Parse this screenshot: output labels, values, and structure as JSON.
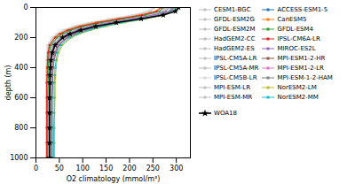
{
  "chart_data": {
    "type": "line",
    "xlabel": "O2 climatology (mmol/m³)",
    "ylabel": "depth (m)",
    "xlim": [
      0,
      330
    ],
    "ylim": [
      1000,
      0
    ],
    "xticks": [
      0,
      50,
      100,
      150,
      200,
      250,
      300
    ],
    "yticks": [
      0,
      200,
      400,
      600,
      800,
      1000
    ],
    "grid": false,
    "legend": "right",
    "y": [
      0,
      25,
      50,
      75,
      100,
      125,
      150,
      175,
      200,
      250,
      300,
      350,
      400,
      450,
      500,
      600,
      700,
      800,
      900,
      1000
    ],
    "series": [
      {
        "name": "CESM1-BGC",
        "color": "#c0c0c0",
        "marker": "circle",
        "values": [
          270,
          265,
          245,
          205,
          155,
          110,
          80,
          60,
          47,
          33,
          29,
          27,
          26,
          26,
          25,
          25,
          25,
          25,
          25,
          25
        ]
      },
      {
        "name": "GFDL-ESM2G",
        "color": "#c0c0c0",
        "marker": "circle",
        "values": [
          275,
          268,
          240,
          195,
          148,
          108,
          80,
          60,
          48,
          34,
          30,
          28,
          27,
          27,
          26,
          26,
          26,
          26,
          26,
          26
        ]
      },
      {
        "name": "GFDL-ESM2M",
        "color": "#c0c0c0",
        "marker": "circle",
        "values": [
          273,
          265,
          235,
          188,
          140,
          100,
          74,
          56,
          44,
          31,
          28,
          27,
          26,
          26,
          25,
          25,
          25,
          25,
          25,
          25
        ]
      },
      {
        "name": "HadGEM2-CC",
        "color": "#c0c0c0",
        "marker": "circle",
        "values": [
          278,
          272,
          248,
          205,
          158,
          117,
          87,
          66,
          52,
          37,
          32,
          30,
          29,
          28,
          28,
          27,
          27,
          27,
          27,
          27
        ]
      },
      {
        "name": "HadGEM2-ES",
        "color": "#c0c0c0",
        "marker": "circle",
        "values": [
          276,
          270,
          244,
          200,
          152,
          112,
          83,
          63,
          50,
          35,
          31,
          29,
          28,
          27,
          27,
          27,
          26,
          26,
          26,
          26
        ]
      },
      {
        "name": "IPSL-CM5A-LR",
        "color": "#c0c0c0",
        "marker": "circle",
        "values": [
          255,
          245,
          215,
          168,
          122,
          87,
          63,
          48,
          38,
          27,
          25,
          24,
          23,
          23,
          23,
          23,
          22,
          22,
          22,
          22
        ]
      },
      {
        "name": "IPSL-CM5A-MR",
        "color": "#c0c0c0",
        "marker": "circle",
        "values": [
          252,
          242,
          210,
          163,
          118,
          84,
          61,
          46,
          37,
          26,
          24,
          23,
          22,
          22,
          22,
          22,
          22,
          22,
          22,
          22
        ]
      },
      {
        "name": "IPSL-CM5B-LR",
        "color": "#d8d8d8",
        "marker": "circle",
        "values": [
          248,
          238,
          205,
          157,
          112,
          79,
          57,
          43,
          34,
          24,
          23,
          22,
          22,
          22,
          21,
          21,
          21,
          21,
          21,
          21
        ]
      },
      {
        "name": "MPI-ESM-LR",
        "color": "#c0c0c0",
        "marker": "circle",
        "values": [
          282,
          277,
          255,
          215,
          168,
          127,
          97,
          75,
          60,
          44,
          37,
          34,
          33,
          32,
          31,
          31,
          31,
          30,
          30,
          30
        ]
      },
      {
        "name": "MPI-ESM-MR",
        "color": "#c0c0c0",
        "marker": "circle",
        "values": [
          280,
          275,
          252,
          210,
          163,
          122,
          93,
          71,
          57,
          41,
          35,
          32,
          31,
          30,
          30,
          30,
          29,
          29,
          29,
          29
        ]
      },
      {
        "name": "ACCESS-ESM1-5",
        "color": "#1f77b4",
        "marker": "square",
        "values": [
          290,
          285,
          262,
          220,
          172,
          132,
          102,
          80,
          64,
          47,
          40,
          37,
          35,
          34,
          34,
          33,
          33,
          33,
          33,
          33
        ]
      },
      {
        "name": "CanESM5",
        "color": "#ff7f0e",
        "marker": "square",
        "values": [
          265,
          255,
          222,
          174,
          127,
          91,
          66,
          50,
          40,
          29,
          26,
          25,
          24,
          24,
          23,
          23,
          23,
          23,
          23,
          23
        ]
      },
      {
        "name": "GFDL-ESM4",
        "color": "#2ca02c",
        "marker": "square",
        "values": [
          272,
          264,
          234,
          187,
          140,
          101,
          75,
          57,
          45,
          32,
          28,
          27,
          26,
          26,
          26,
          25,
          25,
          25,
          25,
          25
        ]
      },
      {
        "name": "IPSL-CM6A-LR",
        "color": "#d62728",
        "marker": "square",
        "values": [
          268,
          258,
          227,
          179,
          132,
          95,
          69,
          52,
          41,
          29,
          26,
          25,
          24,
          24,
          23,
          23,
          23,
          23,
          23,
          23
        ]
      },
      {
        "name": "MIROC-ES2L",
        "color": "#9467bd",
        "marker": "square",
        "values": [
          285,
          278,
          252,
          207,
          158,
          118,
          88,
          67,
          53,
          38,
          33,
          31,
          30,
          29,
          29,
          28,
          28,
          28,
          28,
          28
        ]
      },
      {
        "name": "MPI-ESM1-2-HR",
        "color": "#8c564b",
        "marker": "square",
        "values": [
          295,
          290,
          268,
          228,
          180,
          140,
          108,
          85,
          68,
          50,
          43,
          39,
          37,
          36,
          36,
          35,
          35,
          35,
          35,
          35
        ]
      },
      {
        "name": "MPI-ESM1-2-LR",
        "color": "#e377c2",
        "marker": "square",
        "values": [
          292,
          287,
          264,
          223,
          175,
          135,
          104,
          81,
          65,
          47,
          40,
          37,
          35,
          35,
          34,
          34,
          34,
          33,
          33,
          33
        ]
      },
      {
        "name": "MPI-ESM-1-2-HAM",
        "color": "#7f7f7f",
        "marker": "square",
        "values": [
          293,
          288,
          266,
          225,
          178,
          137,
          106,
          83,
          67,
          49,
          41,
          38,
          36,
          35,
          35,
          34,
          34,
          34,
          34,
          34
        ]
      },
      {
        "name": "NorESM2-LM",
        "color": "#bcbd22",
        "marker": "square",
        "values": [
          300,
          296,
          275,
          236,
          190,
          150,
          118,
          94,
          76,
          57,
          49,
          45,
          43,
          42,
          41,
          41,
          40,
          40,
          40,
          40
        ]
      },
      {
        "name": "NorESM2-MM",
        "color": "#17becf",
        "marker": "square",
        "values": [
          298,
          294,
          272,
          232,
          185,
          145,
          114,
          90,
          73,
          54,
          46,
          43,
          41,
          40,
          39,
          39,
          39,
          38,
          38,
          38
        ]
      },
      {
        "name": "WOA18",
        "color": "#000000",
        "marker": "star",
        "values": [
          305,
          298,
          272,
          225,
          172,
          128,
          96,
          73,
          57,
          41,
          35,
          32,
          31,
          30,
          30,
          29,
          29,
          29,
          29,
          29
        ]
      }
    ]
  }
}
